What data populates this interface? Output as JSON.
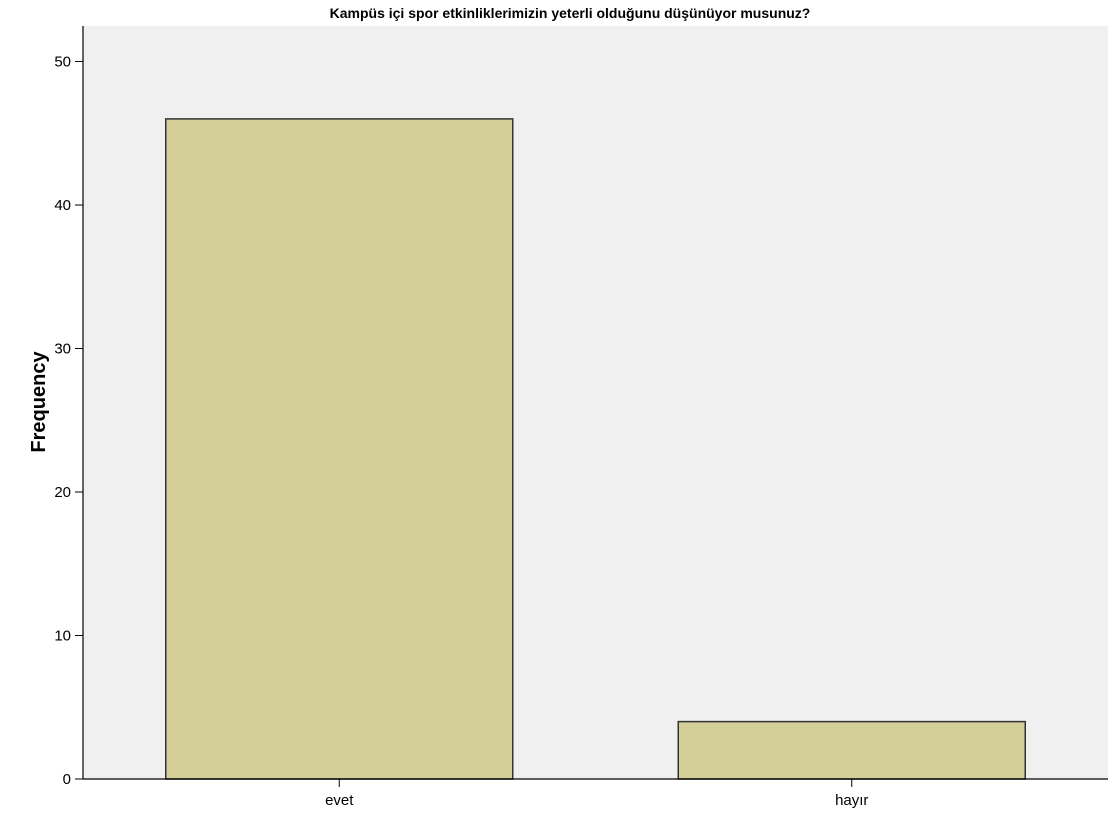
{
  "chart_data": {
    "type": "bar",
    "title": "Kampüs içi spor etkinliklerimizin yeterli olduğunu düşünüyor musunuz?",
    "xlabel": "",
    "ylabel": "Frequency",
    "categories": [
      "evet",
      "hayır"
    ],
    "values": [
      46,
      4
    ],
    "ylim": [
      0,
      52
    ],
    "yticks": [
      0,
      10,
      20,
      30,
      40,
      50
    ],
    "grid": false,
    "legend": "none",
    "colors": {
      "plot_background": "#f0f0f0",
      "bar_fill": "#d3ce97",
      "bar_stroke": "#333333",
      "axis": "#000000"
    }
  }
}
